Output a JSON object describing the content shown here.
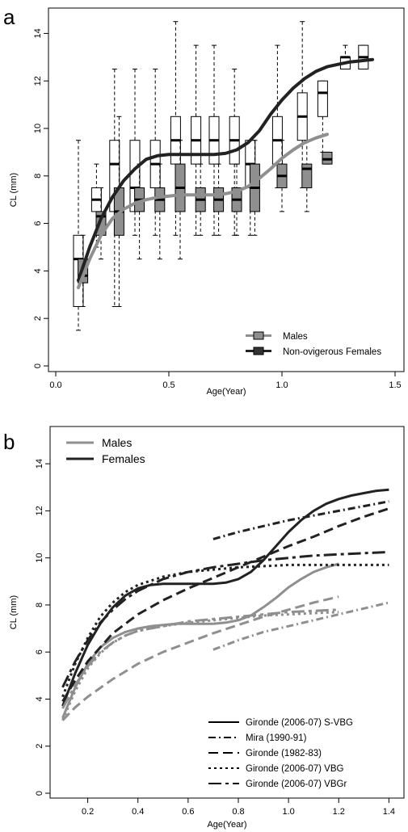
{
  "colors": {
    "male": "#8f8f8f",
    "female": "#222222",
    "axis": "#000000",
    "box_male": "#8f8f8f",
    "box_female": "#ffffff"
  },
  "chart_data": [
    {
      "panel": "a",
      "type": "box",
      "xlabel": "Age(Year)",
      "ylabel": "CL (mm)",
      "xlim": [
        0,
        1.5
      ],
      "ylim": [
        0,
        15
      ],
      "xticks": [
        "0.0",
        "0.5",
        "1.0",
        "1.5"
      ],
      "yticks": [
        "0",
        "2",
        "4",
        "6",
        "8",
        "10",
        "12",
        "14"
      ],
      "legend": {
        "position": "bottom-right",
        "entries": [
          "Males",
          "Non-ovigerous Females"
        ]
      },
      "series": [
        {
          "name": "Non-ovigerous Females",
          "fill": "white",
          "boxes": [
            {
              "x": 0.1,
              "min": 1.5,
              "q1": 2.5,
              "median": 4.5,
              "q3": 5.5,
              "max": 9.5
            },
            {
              "x": 0.18,
              "min": 5.0,
              "q1": 6.5,
              "median": 7.0,
              "q3": 7.5,
              "max": 8.5
            },
            {
              "x": 0.26,
              "min": 2.5,
              "q1": 6.5,
              "median": 8.5,
              "q3": 9.5,
              "max": 12.5
            },
            {
              "x": 0.35,
              "min": 5.5,
              "q1": 6.5,
              "median": 7.5,
              "q3": 9.5,
              "max": 12.5
            },
            {
              "x": 0.44,
              "min": 5.5,
              "q1": 7.5,
              "median": 8.5,
              "q3": 9.5,
              "max": 12.5
            },
            {
              "x": 0.53,
              "min": 5.5,
              "q1": 8.5,
              "median": 9.5,
              "q3": 10.5,
              "max": 14.5
            },
            {
              "x": 0.62,
              "min": 5.5,
              "q1": 8.5,
              "median": 9.5,
              "q3": 10.5,
              "max": 13.5
            },
            {
              "x": 0.7,
              "min": 5.5,
              "q1": 8.5,
              "median": 9.5,
              "q3": 10.5,
              "max": 13.5
            },
            {
              "x": 0.79,
              "min": 5.5,
              "q1": 8.5,
              "median": 9.5,
              "q3": 10.5,
              "max": 12.5
            },
            {
              "x": 0.86,
              "min": 5.5,
              "q1": 7.5,
              "median": 8.5,
              "q3": 9.5,
              "max": 9.5
            },
            {
              "x": 0.98,
              "min": 7.5,
              "q1": 8.5,
              "median": 9.5,
              "q3": 10.5,
              "max": 13.5
            },
            {
              "x": 1.09,
              "min": 7.5,
              "q1": 9.5,
              "median": 10.5,
              "q3": 11.5,
              "max": 14.5
            },
            {
              "x": 1.18,
              "min": 9.0,
              "q1": 10.5,
              "median": 11.5,
              "q3": 12.0,
              "max": 12.0
            },
            {
              "x": 1.28,
              "min": 12.5,
              "q1": 12.5,
              "median": 13.0,
              "q3": 13.0,
              "max": 13.5
            },
            {
              "x": 1.36,
              "min": 12.5,
              "q1": 12.5,
              "median": 13.0,
              "q3": 13.5,
              "max": 13.5
            }
          ],
          "curve": {
            "x": [
              0.1,
              0.15,
              0.2,
              0.25,
              0.3,
              0.35,
              0.4,
              0.45,
              0.5,
              0.55,
              0.6,
              0.65,
              0.7,
              0.75,
              0.8,
              0.85,
              0.9,
              0.95,
              1.0,
              1.05,
              1.1,
              1.15,
              1.2,
              1.25,
              1.3,
              1.35,
              1.4
            ],
            "y": [
              3.6,
              5.0,
              6.2,
              7.1,
              7.8,
              8.3,
              8.7,
              8.85,
              8.9,
              8.9,
              8.9,
              8.9,
              8.9,
              8.95,
              9.1,
              9.4,
              9.9,
              10.6,
              11.2,
              11.7,
              12.1,
              12.4,
              12.6,
              12.7,
              12.8,
              12.85,
              12.9
            ]
          }
        },
        {
          "name": "Males",
          "fill": "gray",
          "boxes": [
            {
              "x": 0.12,
              "min": 2.5,
              "q1": 3.5,
              "median": 3.8,
              "q3": 4.5,
              "max": 5.5
            },
            {
              "x": 0.2,
              "min": 4.5,
              "q1": 5.5,
              "median": 6.3,
              "q3": 6.5,
              "max": 7.5
            },
            {
              "x": 0.28,
              "min": 2.5,
              "q1": 5.5,
              "median": 6.5,
              "q3": 7.5,
              "max": 10.5
            },
            {
              "x": 0.37,
              "min": 4.5,
              "q1": 6.5,
              "median": 7.0,
              "q3": 7.5,
              "max": 8.5
            },
            {
              "x": 0.46,
              "min": 4.5,
              "q1": 6.5,
              "median": 7.0,
              "q3": 7.5,
              "max": 8.5
            },
            {
              "x": 0.55,
              "min": 4.5,
              "q1": 6.5,
              "median": 7.5,
              "q3": 8.5,
              "max": 9.5
            },
            {
              "x": 0.64,
              "min": 5.5,
              "q1": 6.5,
              "median": 7.0,
              "q3": 7.5,
              "max": 8.5
            },
            {
              "x": 0.72,
              "min": 5.5,
              "q1": 6.5,
              "median": 7.0,
              "q3": 7.5,
              "max": 8.5
            },
            {
              "x": 0.8,
              "min": 5.5,
              "q1": 6.5,
              "median": 7.0,
              "q3": 7.5,
              "max": 8.5
            },
            {
              "x": 0.88,
              "min": 5.5,
              "q1": 6.5,
              "median": 7.5,
              "q3": 8.5,
              "max": 9.5
            },
            {
              "x": 1.0,
              "min": 6.5,
              "q1": 7.5,
              "median": 8.0,
              "q3": 8.5,
              "max": 9.5
            },
            {
              "x": 1.11,
              "min": 6.5,
              "q1": 7.5,
              "median": 8.3,
              "q3": 8.5,
              "max": 9.5
            },
            {
              "x": 1.2,
              "min": 8.5,
              "q1": 8.5,
              "median": 8.7,
              "q3": 9.0,
              "max": 9.0
            }
          ],
          "curve": {
            "x": [
              0.1,
              0.15,
              0.2,
              0.25,
              0.3,
              0.35,
              0.4,
              0.45,
              0.5,
              0.55,
              0.6,
              0.65,
              0.7,
              0.75,
              0.8,
              0.85,
              0.9,
              0.95,
              1.0,
              1.05,
              1.1,
              1.15,
              1.2
            ],
            "y": [
              3.3,
              4.5,
              5.5,
              6.2,
              6.6,
              6.85,
              7.0,
              7.1,
              7.15,
              7.2,
              7.2,
              7.2,
              7.2,
              7.25,
              7.35,
              7.55,
              7.9,
              8.3,
              8.75,
              9.1,
              9.4,
              9.6,
              9.75
            ]
          }
        }
      ]
    },
    {
      "panel": "b",
      "type": "line",
      "xlabel": "Age(Year)",
      "ylabel": "CL (mm)",
      "xlim": [
        0.05,
        1.46
      ],
      "ylim": [
        0,
        15
      ],
      "xticks": [
        "0.2",
        "0.4",
        "0.6",
        "0.8",
        "1.0",
        "1.2",
        "1.4"
      ],
      "yticks": [
        "0",
        "2",
        "4",
        "6",
        "8",
        "10",
        "12",
        "14"
      ],
      "color_legend": {
        "position": "top-left",
        "entries": [
          "Males",
          "Females"
        ]
      },
      "style_legend": {
        "position": "bottom-right",
        "entries": [
          "Gironde (2006-07) S-VBG",
          "Mira (1990-91)",
          "Gironde (1982-83)",
          "Gironde (2006-07) VBG",
          "Gironde (2006-07) VBGr"
        ]
      },
      "series": [
        {
          "name": "Females",
          "model": "Gironde (2006-07) S-VBG",
          "x": [
            0.1,
            0.15,
            0.2,
            0.25,
            0.3,
            0.35,
            0.4,
            0.45,
            0.5,
            0.55,
            0.6,
            0.65,
            0.7,
            0.75,
            0.8,
            0.85,
            0.9,
            0.95,
            1.0,
            1.05,
            1.1,
            1.15,
            1.2,
            1.25,
            1.3,
            1.35,
            1.4
          ],
          "y": [
            3.7,
            5.1,
            6.3,
            7.2,
            7.9,
            8.4,
            8.7,
            8.85,
            8.9,
            8.9,
            8.9,
            8.9,
            8.9,
            8.95,
            9.1,
            9.4,
            9.9,
            10.5,
            11.1,
            11.6,
            12.0,
            12.3,
            12.5,
            12.65,
            12.75,
            12.85,
            12.9
          ]
        },
        {
          "name": "Males",
          "model": "Gironde (2006-07) S-VBG",
          "x": [
            0.1,
            0.15,
            0.2,
            0.25,
            0.3,
            0.35,
            0.4,
            0.45,
            0.5,
            0.55,
            0.6,
            0.65,
            0.7,
            0.75,
            0.8,
            0.85,
            0.9,
            0.95,
            1.0,
            1.05,
            1.1,
            1.15,
            1.2
          ],
          "y": [
            3.2,
            4.5,
            5.5,
            6.2,
            6.6,
            6.85,
            7.0,
            7.1,
            7.15,
            7.2,
            7.2,
            7.2,
            7.2,
            7.25,
            7.35,
            7.55,
            7.9,
            8.3,
            8.75,
            9.1,
            9.4,
            9.6,
            9.75
          ]
        },
        {
          "name": "Females",
          "model": "Mira (1990-91)",
          "x": [
            0.7,
            0.8,
            0.9,
            1.0,
            1.1,
            1.2,
            1.3,
            1.4
          ],
          "y": [
            10.8,
            11.1,
            11.35,
            11.6,
            11.8,
            12.0,
            12.2,
            12.4
          ]
        },
        {
          "name": "Males",
          "model": "Mira (1990-91)",
          "x": [
            0.7,
            0.8,
            0.9,
            1.0,
            1.1,
            1.2,
            1.3,
            1.4
          ],
          "y": [
            6.1,
            6.5,
            6.85,
            7.1,
            7.35,
            7.6,
            7.85,
            8.1
          ]
        },
        {
          "name": "Females",
          "model": "Gironde (1982-83)",
          "x": [
            0.1,
            0.15,
            0.2,
            0.3,
            0.4,
            0.5,
            0.6,
            0.7,
            0.8,
            0.9,
            1.0,
            1.1,
            1.2,
            1.3,
            1.4
          ],
          "y": [
            3.9,
            4.8,
            5.6,
            6.8,
            7.6,
            8.2,
            8.7,
            9.15,
            9.6,
            10.05,
            10.5,
            10.9,
            11.35,
            11.75,
            12.1
          ]
        },
        {
          "name": "Males",
          "model": "Gironde (1982-83)",
          "x": [
            0.1,
            0.15,
            0.2,
            0.3,
            0.4,
            0.5,
            0.6,
            0.7,
            0.8,
            0.9,
            1.0,
            1.1,
            1.2
          ],
          "y": [
            3.1,
            3.65,
            4.1,
            4.85,
            5.5,
            6.0,
            6.4,
            6.8,
            7.15,
            7.5,
            7.8,
            8.1,
            8.35
          ]
        },
        {
          "name": "Females",
          "model": "Gironde (2006-07) VBG",
          "x": [
            0.1,
            0.15,
            0.2,
            0.25,
            0.3,
            0.35,
            0.4,
            0.5,
            0.6,
            0.7,
            0.8,
            0.9,
            1.0,
            1.1,
            1.2,
            1.3,
            1.4
          ],
          "y": [
            4.1,
            5.5,
            6.6,
            7.5,
            8.1,
            8.55,
            8.85,
            9.2,
            9.4,
            9.5,
            9.6,
            9.65,
            9.7,
            9.7,
            9.7,
            9.7,
            9.7
          ]
        },
        {
          "name": "Males",
          "model": "Gironde (2006-07) VBG",
          "x": [
            0.1,
            0.15,
            0.2,
            0.25,
            0.3,
            0.35,
            0.4,
            0.5,
            0.6,
            0.7,
            0.8,
            0.9,
            1.0,
            1.1,
            1.2
          ],
          "y": [
            3.1,
            4.35,
            5.3,
            5.95,
            6.4,
            6.7,
            6.9,
            7.1,
            7.25,
            7.35,
            7.45,
            7.55,
            7.6,
            7.65,
            7.7
          ]
        },
        {
          "name": "Females",
          "model": "Gironde (2006-07) VBGr",
          "x": [
            0.1,
            0.15,
            0.2,
            0.25,
            0.3,
            0.35,
            0.4,
            0.5,
            0.6,
            0.7,
            0.8,
            0.9,
            1.0,
            1.1,
            1.2,
            1.3,
            1.4
          ],
          "y": [
            4.5,
            5.6,
            6.5,
            7.25,
            7.8,
            8.25,
            8.6,
            9.1,
            9.4,
            9.6,
            9.75,
            9.9,
            10.0,
            10.1,
            10.15,
            10.2,
            10.25
          ]
        },
        {
          "name": "Males",
          "model": "Gironde (2006-07) VBGr",
          "x": [
            0.1,
            0.15,
            0.2,
            0.25,
            0.3,
            0.35,
            0.4,
            0.5,
            0.6,
            0.7,
            0.8,
            0.9,
            1.0,
            1.1,
            1.2
          ],
          "y": [
            3.6,
            4.6,
            5.4,
            6.0,
            6.4,
            6.7,
            6.9,
            7.1,
            7.3,
            7.4,
            7.5,
            7.6,
            7.7,
            7.75,
            7.8
          ]
        }
      ]
    }
  ]
}
